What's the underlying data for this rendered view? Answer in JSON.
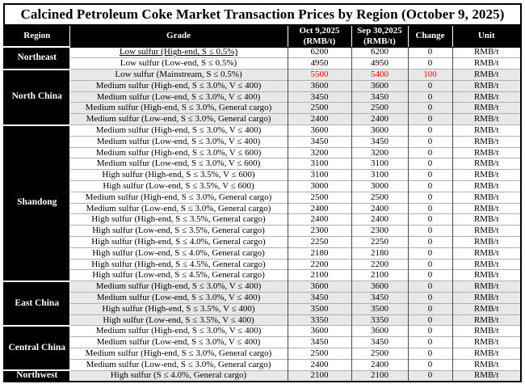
{
  "title": "Calcined Petroleum Coke Market Transaction Prices by Region (October 9, 2025)",
  "columns": {
    "region": "Region",
    "grade": "Grade",
    "oct_line1": "Oct 9,2025",
    "oct_line2": "(RMB/t)",
    "sep_line1": "Sep 30,2025",
    "sep_line2": "(RMB/t)",
    "change": "Change",
    "unit": "Unit"
  },
  "colors": {
    "header_bg": "#000000",
    "header_text": "#ffffff",
    "shaded_row": "#e8e8e8",
    "highlight": "#ff0000"
  },
  "regions": [
    {
      "name": "Northeast",
      "shaded": false,
      "rows": [
        {
          "grade": "Low sulfur (High-end, S ≤ 0.5%)",
          "oct": "6200",
          "sep": "6200",
          "change": "0",
          "unit": "RMB/t",
          "underline": true
        },
        {
          "grade": "Low sulfur (Low-end, S ≤ 0.5%)",
          "oct": "4950",
          "sep": "4950",
          "change": "0",
          "unit": "RMB/t"
        }
      ]
    },
    {
      "name": "North China",
      "shaded": true,
      "rows": [
        {
          "grade": "Low sulfur (Mainstream, S ≤ 0.5%)",
          "oct": "5500",
          "sep": "5400",
          "change": "100",
          "unit": "RMB/t",
          "red": true
        },
        {
          "grade": "Medium sulfur (High-end, S ≤ 3.0%, V ≤ 400)",
          "oct": "3600",
          "sep": "3600",
          "change": "0",
          "unit": "RMB/t"
        },
        {
          "grade": "Medium sulfur (Low-end, S ≤ 3.0%, V ≤ 400)",
          "oct": "3450",
          "sep": "3450",
          "change": "0",
          "unit": "RMB/t"
        },
        {
          "grade": "Medium sulfur (High-end, S ≤ 3.0%, General cargo)",
          "oct": "2500",
          "sep": "2500",
          "change": "0",
          "unit": "RMB/t"
        },
        {
          "grade": "Medium sulfur (Low-end, S ≤ 3.0%, General cargo)",
          "oct": "2400",
          "sep": "2400",
          "change": "0",
          "unit": "RMB/t"
        }
      ]
    },
    {
      "name": "Shandong",
      "shaded": false,
      "rows": [
        {
          "grade": "Medium sulfur (High-end, S ≤ 3.0%, V ≤ 400)",
          "oct": "3600",
          "sep": "3600",
          "change": "0",
          "unit": "RMB/t"
        },
        {
          "grade": "Medium sulfur (Low-end, S ≤ 3.0%, V ≤ 400)",
          "oct": "3450",
          "sep": "3450",
          "change": "0",
          "unit": "RMB/t"
        },
        {
          "grade": "Medium sulfur (High-end, S ≤ 3.0%, V ≤ 600)",
          "oct": "3200",
          "sep": "3200",
          "change": "0",
          "unit": "RMB/t"
        },
        {
          "grade": "Medium sulfur (Low-end, S ≤ 3.0%, V ≤ 600)",
          "oct": "3100",
          "sep": "3100",
          "change": "0",
          "unit": "RMB/t"
        },
        {
          "grade": "High sulfur (High-end, S ≤ 3.5%, V ≤ 600)",
          "oct": "3100",
          "sep": "3100",
          "change": "0",
          "unit": "RMB/t"
        },
        {
          "grade": "High sulfur (Low-end, S ≤ 3.5%, V ≤ 600)",
          "oct": "3000",
          "sep": "3000",
          "change": "0",
          "unit": "RMB/t"
        },
        {
          "grade": "Medium sulfur (High-end, S ≤ 3.0%, General cargo)",
          "oct": "2500",
          "sep": "2500",
          "change": "0",
          "unit": "RMB/t"
        },
        {
          "grade": "Medium sulfur (Low-end, S ≤ 3.0%, General cargo)",
          "oct": "2400",
          "sep": "2400",
          "change": "0",
          "unit": "RMB/t"
        },
        {
          "grade": "High sulfur (High-end, S ≤ 3.5%, General cargo)",
          "oct": "2400",
          "sep": "2400",
          "change": "0",
          "unit": "RMB/t"
        },
        {
          "grade": "High sulfur (Low-end, S ≤ 3.5%, General cargo)",
          "oct": "2300",
          "sep": "2300",
          "change": "0",
          "unit": "RMB/t"
        },
        {
          "grade": "High sulfur (High-end, S ≤ 4.0%, General cargo)",
          "oct": "2250",
          "sep": "2250",
          "change": "0",
          "unit": "RMB/t"
        },
        {
          "grade": "High sulfur (Low-end, S ≤ 4.0%, General cargo)",
          "oct": "2180",
          "sep": "2180",
          "change": "0",
          "unit": "RMB/t"
        },
        {
          "grade": "High sulfur (High-end, S ≤ 4.5%, General cargo)",
          "oct": "2200",
          "sep": "2200",
          "change": "0",
          "unit": "RMB/t"
        },
        {
          "grade": "High sulfur (Low-end, S ≤ 4.5%, General cargo)",
          "oct": "2100",
          "sep": "2100",
          "change": "0",
          "unit": "RMB/t"
        }
      ]
    },
    {
      "name": "East China",
      "shaded": true,
      "rows": [
        {
          "grade": "Medium sulfur (High-end, S ≤ 3.0%, V ≤ 400)",
          "oct": "3600",
          "sep": "3600",
          "change": "0",
          "unit": "RMB/t"
        },
        {
          "grade": "Medium sulfur (Low-end, S ≤ 3.0%, V ≤ 400)",
          "oct": "3450",
          "sep": "3450",
          "change": "0",
          "unit": "RMB/t"
        },
        {
          "grade": "High sulfur (High-end, S ≤ 3.5%, V ≤ 400)",
          "oct": "3500",
          "sep": "3500",
          "change": "0",
          "unit": "RMB/t"
        },
        {
          "grade": "High sulfur (Low-end, S ≤ 3.5%, V ≤ 400)",
          "oct": "3350",
          "sep": "3350",
          "change": "0",
          "unit": "RMB/t"
        }
      ]
    },
    {
      "name": "Central China",
      "shaded": false,
      "rows": [
        {
          "grade": "Medium sulfur (High-end, S ≤ 3.0%, V ≤ 400)",
          "oct": "3600",
          "sep": "3600",
          "change": "0",
          "unit": "RMB/t"
        },
        {
          "grade": "Medium sulfur (Low-end, S ≤ 3.0%, V ≤ 400)",
          "oct": "3450",
          "sep": "3450",
          "change": "0",
          "unit": "RMB/t"
        },
        {
          "grade": "Medium sulfur (High-end, S ≤ 3.0%, General cargo)",
          "oct": "2500",
          "sep": "2500",
          "change": "0",
          "unit": "RMB/t"
        },
        {
          "grade": "Medium sulfur (Low-end, S ≤ 3.0%, General cargo)",
          "oct": "2400",
          "sep": "2400",
          "change": "0",
          "unit": "RMB/t"
        }
      ]
    },
    {
      "name": "Northwest",
      "shaded": true,
      "rows": [
        {
          "grade": "High sulfur (S ≤ 4.0%, General cargo)",
          "oct": "2100",
          "sep": "2100",
          "change": "0",
          "unit": "RMB/t"
        }
      ]
    }
  ]
}
